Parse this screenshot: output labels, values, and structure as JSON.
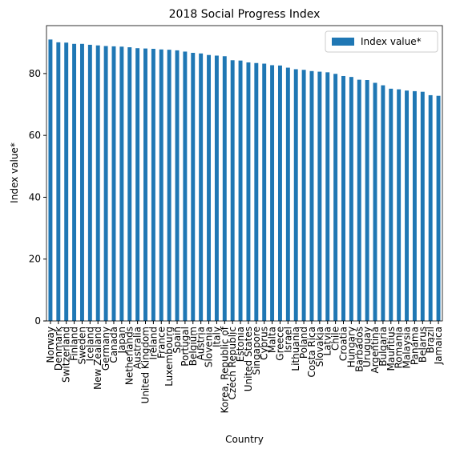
{
  "chart_data": {
    "type": "bar",
    "title": "2018 Social Progress Index",
    "xlabel": "Country",
    "ylabel": "Index value*",
    "categories": [
      "Norway",
      "Denmark",
      "Switzerland",
      "Finland",
      "Sweden",
      "Iceland",
      "New Zealand",
      "Germany",
      "Canada",
      "Japan",
      "Netherlands",
      "Australia",
      "United Kingdom",
      "Ireland",
      "France",
      "Luxembourg",
      "Spain",
      "Portugal",
      "Belgium",
      "Austria",
      "Slovenia",
      "Italy",
      "Korea, Republic of",
      "Czech Republic",
      "Estonia",
      "United States",
      "Singapore",
      "Cyprus",
      "Malta",
      "Greece",
      "Israel",
      "Lithuania",
      "Poland",
      "Costa Rica",
      "Slovakia",
      "Latvia",
      "Chile",
      "Croatia",
      "Hungary",
      "Barbados",
      "Uruguay",
      "Argentina",
      "Bulgaria",
      "Mauritius",
      "Romania",
      "Malaysia",
      "Panama",
      "Belarus",
      "Brazil",
      "Jamaica"
    ],
    "series": [
      {
        "name": "Index value*",
        "color": "#1f77b4",
        "values": [
          91.0,
          90.1,
          90.0,
          89.6,
          89.6,
          89.3,
          89.1,
          88.9,
          88.8,
          88.7,
          88.5,
          88.2,
          88.1,
          88.0,
          87.8,
          87.7,
          87.5,
          87.1,
          86.7,
          86.5,
          86.0,
          85.8,
          85.6,
          84.3,
          84.2,
          83.6,
          83.4,
          83.2,
          82.7,
          82.6,
          81.9,
          81.4,
          81.2,
          80.8,
          80.6,
          80.4,
          79.9,
          79.2,
          78.9,
          78.0,
          77.9,
          77.0,
          76.2,
          75.1,
          74.9,
          74.5,
          74.3,
          74.1,
          73.0,
          72.8
        ]
      }
    ],
    "ylim": [
      0,
      95.5
    ],
    "yticks": [
      0,
      20,
      40,
      60,
      80
    ],
    "legend": "upper right"
  }
}
